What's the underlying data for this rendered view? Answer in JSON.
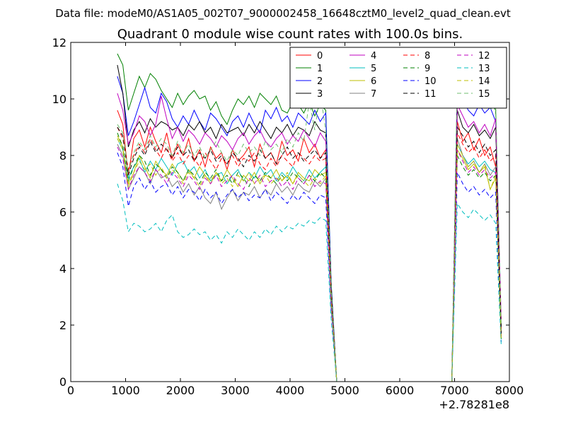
{
  "chart_data": {
    "type": "line",
    "suptitle": "Data file: modeM0/AS1A05_002T07_9000002458_16648cztM0_level2_quad_clean.evt",
    "title": "Quadrant 0 module wise count rates with 100.0s bins.",
    "xlabel": "",
    "ylabel": "",
    "x_offset_label": "+2.78281e8",
    "xlim": [
      0,
      8000
    ],
    "ylim": [
      0,
      12
    ],
    "x_ticks": [
      0,
      1000,
      2000,
      3000,
      4000,
      5000,
      6000,
      7000,
      8000
    ],
    "y_ticks": [
      0,
      2,
      4,
      6,
      8,
      10,
      12
    ],
    "grid": false,
    "legend": {
      "location": "upper right",
      "columns": 4
    },
    "x": [
      850,
      950,
      1050,
      1150,
      1250,
      1350,
      1450,
      1550,
      1650,
      1750,
      1850,
      1950,
      2050,
      2150,
      2250,
      2350,
      2450,
      2550,
      2650,
      2750,
      2850,
      2950,
      3050,
      3150,
      3250,
      3350,
      3450,
      3550,
      3650,
      3750,
      3850,
      3950,
      4050,
      4150,
      4250,
      4350,
      4450,
      4550,
      4650,
      4750,
      4850,
      4950,
      5050,
      5150,
      5250,
      5350,
      5450,
      5550,
      5650,
      5750,
      5850,
      5950,
      6050,
      6150,
      6250,
      6350,
      6450,
      6550,
      6650,
      6750,
      6850,
      6950,
      7050,
      7150,
      7250,
      7350,
      7450,
      7550,
      7650,
      7750,
      7850
    ],
    "series": [
      {
        "name": "0",
        "color": "#ff0000",
        "dash": "solid",
        "values": [
          9.6,
          9.1,
          7.3,
          8.6,
          8.9,
          8.3,
          9.0,
          8.5,
          8.1,
          8.8,
          7.9,
          8.4,
          8.0,
          8.6,
          7.8,
          8.2,
          7.6,
          8.3,
          7.9,
          8.1,
          7.5,
          8.2,
          7.8,
          8.0,
          8.3,
          7.6,
          8.4,
          7.9,
          8.1,
          7.7,
          8.5,
          8.0,
          8.2,
          7.8,
          8.6,
          8.1,
          8.4,
          7.9,
          8.2,
          3.2,
          0,
          0,
          0,
          0,
          0,
          0,
          0,
          0,
          0,
          0,
          0,
          0,
          0,
          0,
          0,
          0,
          0,
          0,
          0,
          0,
          0,
          0,
          9.2,
          8.5,
          8.8,
          8.2,
          8.6,
          8.0,
          8.3,
          7.6,
          1.6
        ]
      },
      {
        "name": "1",
        "color": "#008000",
        "dash": "solid",
        "values": [
          11.6,
          11.2,
          9.6,
          10.2,
          10.8,
          10.4,
          10.9,
          10.7,
          10.3,
          10.0,
          9.7,
          10.2,
          9.8,
          10.1,
          10.3,
          10.0,
          10.1,
          9.6,
          9.9,
          9.4,
          9.1,
          9.6,
          10.0,
          9.8,
          10.1,
          9.7,
          10.2,
          10.0,
          9.8,
          10.1,
          9.6,
          9.5,
          9.9,
          9.8,
          9.5,
          9.9,
          9.4,
          9.8,
          9.6,
          3.5,
          0,
          0,
          0,
          0,
          0,
          0,
          0,
          0,
          0,
          0,
          0,
          0,
          0,
          0,
          0,
          0,
          0,
          0,
          0,
          0,
          0,
          0,
          10.6,
          10.2,
          10.4,
          10.0,
          9.8,
          10.1,
          9.9,
          9.6,
          1.8
        ]
      },
      {
        "name": "2",
        "color": "#0000ff",
        "dash": "solid",
        "values": [
          10.8,
          10.2,
          8.7,
          9.2,
          9.8,
          10.4,
          9.7,
          9.5,
          10.2,
          9.9,
          9.3,
          9.0,
          9.4,
          9.1,
          9.6,
          9.2,
          8.9,
          9.5,
          9.3,
          9.0,
          8.7,
          9.2,
          9.4,
          9.0,
          9.5,
          9.1,
          8.8,
          9.6,
          9.3,
          9.7,
          9.2,
          9.4,
          9.0,
          9.5,
          9.3,
          9.1,
          9.6,
          9.2,
          9.5,
          3.4,
          0,
          0,
          0,
          0,
          0,
          0,
          0,
          0,
          0,
          0,
          0,
          0,
          0,
          0,
          0,
          0,
          0,
          0,
          0,
          0,
          0,
          0,
          10.2,
          10.0,
          9.6,
          9.4,
          9.8,
          9.5,
          9.7,
          9.2,
          1.7
        ]
      },
      {
        "name": "3",
        "color": "#000000",
        "dash": "solid",
        "values": [
          11.2,
          10.2,
          8.3,
          8.9,
          9.2,
          8.8,
          9.3,
          9.0,
          9.2,
          9.1,
          8.9,
          9.0,
          8.7,
          9.1,
          8.9,
          9.2,
          8.8,
          9.0,
          8.6,
          9.1,
          8.8,
          8.9,
          9.0,
          8.7,
          9.1,
          8.8,
          9.2,
          8.9,
          8.6,
          9.0,
          8.8,
          9.1,
          8.7,
          9.0,
          8.9,
          8.7,
          9.2,
          8.9,
          8.8,
          3.3,
          0,
          0,
          0,
          0,
          0,
          0,
          0,
          0,
          0,
          0,
          0,
          0,
          0,
          0,
          0,
          0,
          0,
          0,
          0,
          0,
          0,
          0,
          9.6,
          9.0,
          8.8,
          9.1,
          8.7,
          8.9,
          8.6,
          9.0,
          1.9
        ]
      },
      {
        "name": "4",
        "color": "#bf00bf",
        "dash": "solid",
        "values": [
          10.2,
          9.6,
          8.4,
          8.8,
          9.4,
          9.2,
          8.7,
          9.1,
          10.1,
          9.3,
          8.6,
          9.0,
          8.5,
          8.9,
          8.7,
          8.4,
          8.8,
          8.6,
          8.3,
          8.7,
          8.5,
          8.2,
          8.6,
          8.8,
          8.4,
          8.7,
          8.9,
          8.5,
          8.3,
          8.6,
          8.8,
          8.4,
          8.7,
          8.5,
          8.9,
          8.6,
          8.3,
          8.8,
          8.5,
          3.1,
          0,
          0,
          0,
          0,
          0,
          0,
          0,
          0,
          0,
          0,
          0,
          0,
          0,
          0,
          0,
          0,
          0,
          0,
          0,
          0,
          0,
          0,
          9.8,
          9.4,
          9.0,
          9.2,
          8.8,
          9.1,
          8.7,
          9.3,
          2.2
        ]
      },
      {
        "name": "5",
        "color": "#00bfbf",
        "dash": "solid",
        "values": [
          8.6,
          8.2,
          7.2,
          7.6,
          7.9,
          7.4,
          7.8,
          7.5,
          7.9,
          7.6,
          7.3,
          7.7,
          7.8,
          7.4,
          7.6,
          7.2,
          7.5,
          7.1,
          7.3,
          7.4,
          7.0,
          7.3,
          7.5,
          7.1,
          7.4,
          7.2,
          7.6,
          7.3,
          7.5,
          7.1,
          7.4,
          7.2,
          7.6,
          7.3,
          7.1,
          7.5,
          7.2,
          7.4,
          7.6,
          2.9,
          0,
          0,
          0,
          0,
          0,
          0,
          0,
          0,
          0,
          0,
          0,
          0,
          0,
          0,
          0,
          0,
          0,
          0,
          0,
          0,
          0,
          0,
          8.4,
          8.0,
          7.7,
          7.9,
          7.6,
          7.8,
          7.5,
          7.4,
          1.5
        ]
      },
      {
        "name": "6",
        "color": "#bfbf00",
        "dash": "solid",
        "values": [
          8.7,
          8.3,
          7.0,
          7.4,
          8.0,
          7.6,
          7.2,
          7.8,
          7.5,
          7.3,
          7.7,
          7.4,
          7.1,
          7.5,
          7.2,
          7.6,
          7.3,
          7.0,
          7.4,
          7.1,
          7.5,
          7.2,
          6.9,
          7.3,
          7.1,
          7.4,
          7.0,
          7.3,
          7.2,
          7.5,
          7.1,
          7.3,
          7.0,
          7.4,
          7.2,
          7.1,
          7.5,
          7.3,
          7.4,
          2.8,
          0,
          0,
          0,
          0,
          0,
          0,
          0,
          0,
          0,
          0,
          0,
          0,
          0,
          0,
          0,
          0,
          0,
          0,
          0,
          0,
          0,
          0,
          8.2,
          7.9,
          7.5,
          7.7,
          7.4,
          7.6,
          6.8,
          7.2,
          1.6
        ]
      },
      {
        "name": "7",
        "color": "#808080",
        "dash": "solid",
        "values": [
          8.4,
          8.0,
          6.8,
          7.2,
          7.6,
          7.4,
          7.0,
          7.5,
          7.2,
          7.3,
          6.9,
          7.1,
          6.7,
          7.0,
          6.6,
          6.9,
          6.5,
          6.3,
          6.7,
          6.1,
          6.5,
          6.8,
          6.4,
          6.7,
          6.6,
          6.9,
          6.5,
          6.8,
          6.6,
          7.0,
          6.7,
          6.9,
          6.6,
          7.0,
          6.8,
          6.7,
          7.1,
          6.9,
          7.2,
          2.7,
          0,
          0,
          0,
          0,
          0,
          0,
          0,
          0,
          0,
          0,
          0,
          0,
          0,
          0,
          0,
          0,
          0,
          0,
          0,
          0,
          0,
          0,
          8.6,
          8.0,
          7.6,
          7.8,
          7.4,
          7.7,
          7.3,
          7.6,
          1.7
        ]
      },
      {
        "name": "8",
        "color": "#ff0000",
        "dash": "dashed",
        "values": [
          9.0,
          8.6,
          7.5,
          8.0,
          8.4,
          8.1,
          8.6,
          8.2,
          7.9,
          8.3,
          7.8,
          8.1,
          7.7,
          8.0,
          7.9,
          7.6,
          8.1,
          7.8,
          7.5,
          7.9,
          7.7,
          8.0,
          7.6,
          7.9,
          7.8,
          8.1,
          7.7,
          7.5,
          7.9,
          7.6,
          8.0,
          7.8,
          7.6,
          8.1,
          7.9,
          7.7,
          8.0,
          7.8,
          7.9,
          3.0,
          0,
          0,
          0,
          0,
          0,
          0,
          0,
          0,
          0,
          0,
          0,
          0,
          0,
          0,
          0,
          0,
          0,
          0,
          0,
          0,
          0,
          0,
          8.8,
          8.4,
          8.1,
          8.3,
          7.9,
          8.2,
          7.8,
          8.0,
          1.8
        ]
      },
      {
        "name": "9",
        "color": "#008000",
        "dash": "dashed",
        "values": [
          8.8,
          8.3,
          7.1,
          7.6,
          8.0,
          7.8,
          7.3,
          7.7,
          7.5,
          7.2,
          7.6,
          7.4,
          7.1,
          7.5,
          7.3,
          7.0,
          7.4,
          7.2,
          7.5,
          7.1,
          7.3,
          7.0,
          7.4,
          7.2,
          6.9,
          7.3,
          7.1,
          7.4,
          7.2,
          7.0,
          7.3,
          7.1,
          7.4,
          7.2,
          7.0,
          7.3,
          7.1,
          7.4,
          7.2,
          2.8,
          0,
          0,
          0,
          0,
          0,
          0,
          0,
          0,
          0,
          0,
          0,
          0,
          0,
          0,
          0,
          0,
          0,
          0,
          0,
          0,
          0,
          0,
          8.0,
          7.6,
          7.3,
          7.5,
          7.2,
          7.4,
          7.1,
          7.3,
          1.5
        ]
      },
      {
        "name": "10",
        "color": "#0000ff",
        "dash": "dashed",
        "values": [
          8.1,
          7.6,
          6.2,
          6.9,
          7.2,
          6.8,
          7.1,
          6.7,
          6.9,
          7.0,
          6.6,
          6.9,
          6.5,
          6.8,
          6.7,
          6.4,
          6.8,
          6.5,
          6.7,
          6.3,
          6.6,
          6.8,
          6.5,
          6.7,
          6.4,
          6.6,
          6.5,
          6.8,
          6.4,
          6.7,
          6.5,
          6.3,
          6.6,
          6.4,
          6.7,
          6.5,
          6.3,
          6.6,
          6.5,
          2.6,
          0,
          0,
          0,
          0,
          0,
          0,
          0,
          0,
          0,
          0,
          0,
          0,
          0,
          0,
          0,
          0,
          0,
          0,
          0,
          0,
          0,
          0,
          7.4,
          7.0,
          6.7,
          6.9,
          6.6,
          6.8,
          6.5,
          6.7,
          1.4
        ]
      },
      {
        "name": "11",
        "color": "#000000",
        "dash": "dashed",
        "values": [
          9.0,
          8.7,
          7.3,
          7.9,
          8.3,
          8.0,
          8.5,
          8.1,
          8.4,
          8.2,
          7.9,
          8.3,
          8.0,
          8.2,
          7.8,
          8.1,
          7.9,
          8.2,
          7.8,
          8.0,
          7.7,
          8.1,
          7.9,
          7.6,
          8.0,
          7.8,
          8.2,
          7.9,
          8.1,
          7.7,
          8.0,
          8.3,
          7.9,
          8.1,
          7.8,
          8.0,
          8.2,
          7.9,
          8.1,
          3.0,
          0,
          0,
          0,
          0,
          0,
          0,
          0,
          0,
          0,
          0,
          0,
          0,
          0,
          0,
          0,
          0,
          0,
          0,
          0,
          0,
          0,
          0,
          9.0,
          8.7,
          8.3,
          8.5,
          8.1,
          8.4,
          8.0,
          8.2,
          1.7
        ]
      },
      {
        "name": "12",
        "color": "#bf00bf",
        "dash": "dashed",
        "values": [
          8.3,
          7.9,
          6.8,
          7.3,
          7.6,
          7.4,
          7.1,
          7.5,
          7.3,
          7.0,
          7.4,
          7.2,
          6.9,
          7.3,
          7.1,
          6.8,
          7.2,
          7.0,
          7.3,
          6.9,
          7.1,
          7.3,
          7.0,
          6.8,
          7.2,
          7.0,
          7.3,
          6.9,
          7.1,
          7.2,
          6.9,
          7.1,
          6.8,
          7.2,
          7.0,
          7.3,
          6.9,
          7.1,
          7.0,
          2.7,
          0,
          0,
          0,
          0,
          0,
          0,
          0,
          0,
          0,
          0,
          0,
          0,
          0,
          0,
          0,
          0,
          0,
          0,
          0,
          0,
          0,
          0,
          8.2,
          7.8,
          7.4,
          7.6,
          7.3,
          7.5,
          7.2,
          7.4,
          1.6
        ]
      },
      {
        "name": "13",
        "color": "#00bfbf",
        "dash": "dashed",
        "values": [
          7.0,
          6.4,
          5.3,
          5.6,
          5.5,
          5.3,
          5.4,
          5.6,
          5.3,
          5.7,
          5.9,
          5.3,
          5.1,
          5.2,
          5.4,
          5.2,
          5.3,
          5.0,
          5.2,
          4.9,
          5.3,
          5.1,
          5.4,
          5.2,
          5.0,
          5.3,
          5.1,
          5.4,
          5.2,
          5.5,
          5.3,
          5.5,
          5.4,
          5.6,
          5.5,
          5.7,
          5.6,
          5.8,
          5.7,
          2.2,
          0,
          0,
          0,
          0,
          0,
          0,
          0,
          0,
          0,
          0,
          0,
          0,
          0,
          0,
          0,
          0,
          0,
          0,
          0,
          0,
          0,
          0,
          6.3,
          6.0,
          5.8,
          6.1,
          5.9,
          5.7,
          5.9,
          5.6,
          1.3
        ]
      },
      {
        "name": "14",
        "color": "#bfbf00",
        "dash": "dashed",
        "values": [
          8.6,
          8.2,
          6.9,
          7.4,
          7.8,
          7.5,
          7.7,
          7.3,
          7.6,
          7.2,
          7.5,
          7.3,
          7.0,
          7.4,
          7.2,
          6.9,
          7.3,
          7.1,
          7.4,
          7.0,
          7.2,
          6.9,
          7.3,
          7.1,
          7.4,
          7.0,
          7.2,
          7.3,
          7.0,
          7.2,
          7.1,
          7.4,
          7.0,
          7.3,
          7.1,
          6.9,
          7.2,
          7.0,
          7.3,
          2.8,
          0,
          0,
          0,
          0,
          0,
          0,
          0,
          0,
          0,
          0,
          0,
          0,
          0,
          0,
          0,
          0,
          0,
          0,
          0,
          0,
          0,
          0,
          8.4,
          8.0,
          7.6,
          7.8,
          7.4,
          7.7,
          6.8,
          7.3,
          1.5
        ]
      },
      {
        "name": "15",
        "color": "#6fbf6f",
        "dash": "dashed",
        "values": [
          9.1,
          8.8,
          7.4,
          8.1,
          8.5,
          8.2,
          8.7,
          8.3,
          8.6,
          8.4,
          8.0,
          8.5,
          8.1,
          8.4,
          8.0,
          8.3,
          7.9,
          8.2,
          8.5,
          8.1,
          7.8,
          8.2,
          8.0,
          8.4,
          8.1,
          8.3,
          8.0,
          8.5,
          8.2,
          8.4,
          8.1,
          8.6,
          8.3,
          8.8,
          8.5,
          9.9,
          8.9,
          10.2,
          8.9,
          3.2,
          0,
          0,
          0,
          0,
          0,
          0,
          0,
          0,
          0,
          0,
          0,
          0,
          0,
          0,
          0,
          0,
          0,
          0,
          0,
          0,
          0,
          0,
          11.0,
          10.3,
          9.9,
          10.4,
          9.8,
          10.5,
          9.6,
          9.9,
          2.0
        ]
      }
    ]
  }
}
